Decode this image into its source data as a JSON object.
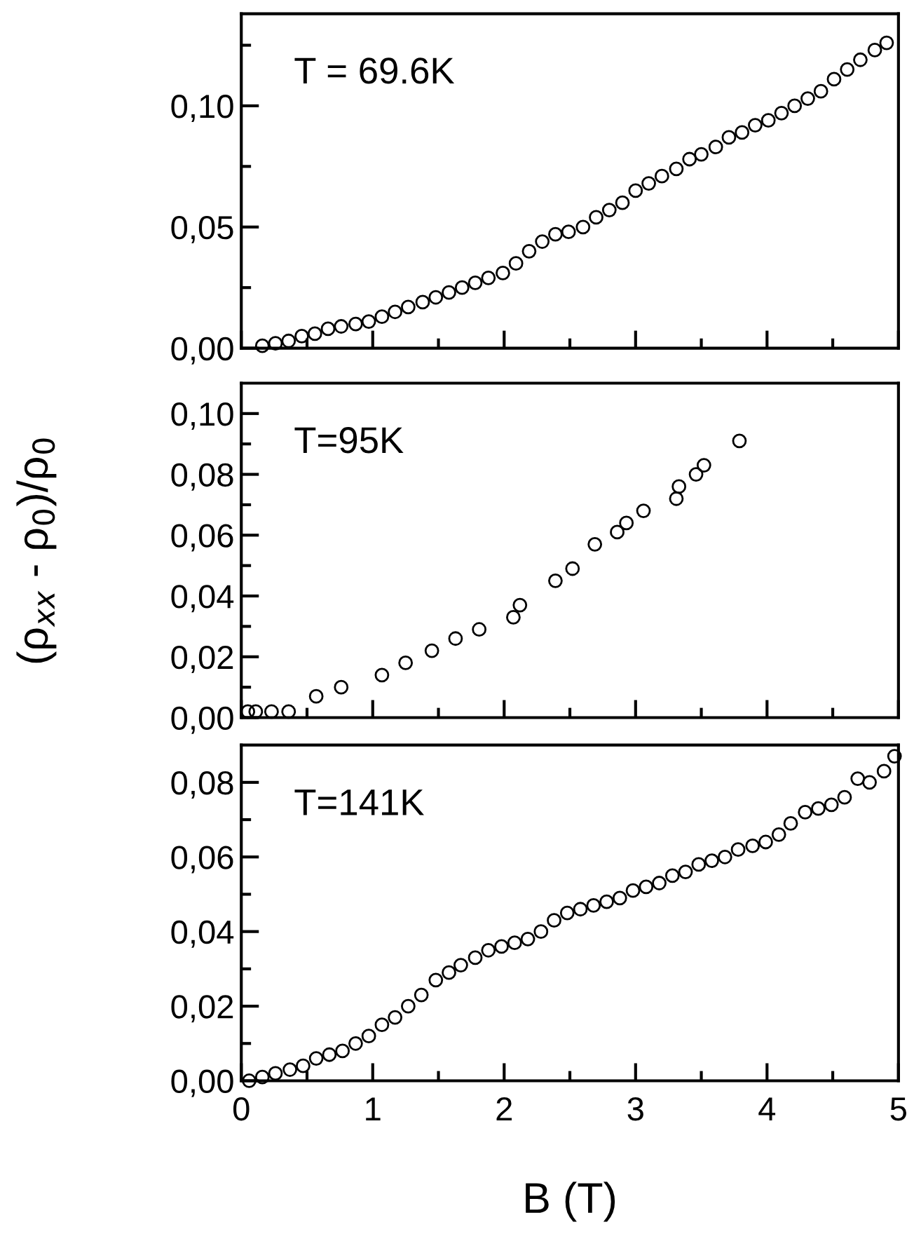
{
  "chart_data": [
    {
      "type": "scatter",
      "annotations": [
        "T = 69.6K"
      ],
      "marker": "circle",
      "grid": false,
      "tick_labels": "y",
      "xlim": [
        0,
        5
      ],
      "xticks": [
        0,
        {
          "value": 0.5,
          "label": null
        },
        1,
        {
          "value": 1.5,
          "label": null
        },
        2,
        {
          "value": 2.5,
          "label": null
        },
        3,
        {
          "value": 3.5,
          "label": null
        },
        4,
        {
          "value": 4.5,
          "label": null
        },
        5
      ],
      "ylim": [
        0,
        0.138
      ],
      "yticks": [
        {
          "value": 0,
          "label": "0,00"
        },
        {
          "value": 0.025,
          "label": null
        },
        {
          "value": 0.05,
          "label": "0,05"
        },
        {
          "value": 0.075,
          "label": null
        },
        {
          "value": 0.1,
          "label": "0,10"
        },
        {
          "value": 0.125,
          "label": null
        }
      ],
      "series": [
        {
          "color": "#000000",
          "x": [
            0.16,
            0.26,
            0.36,
            0.46,
            0.56,
            0.66,
            0.76,
            0.87,
            0.97,
            1.07,
            1.17,
            1.27,
            1.38,
            1.48,
            1.58,
            1.68,
            1.78,
            1.88,
            1.99,
            2.09,
            2.19,
            2.29,
            2.39,
            2.49,
            2.6,
            2.7,
            2.8,
            2.9,
            3.0,
            3.1,
            3.2,
            3.31,
            3.41,
            3.5,
            3.61,
            3.71,
            3.81,
            3.91,
            4.01,
            4.11,
            4.21,
            4.31,
            4.41,
            4.51,
            4.61,
            4.71,
            4.82,
            4.91
          ],
          "values": [
            0.001,
            0.002,
            0.003,
            0.005,
            0.006,
            0.008,
            0.009,
            0.01,
            0.011,
            0.013,
            0.015,
            0.017,
            0.019,
            0.021,
            0.023,
            0.025,
            0.027,
            0.029,
            0.031,
            0.035,
            0.04,
            0.044,
            0.047,
            0.048,
            0.05,
            0.054,
            0.057,
            0.06,
            0.065,
            0.068,
            0.071,
            0.074,
            0.078,
            0.08,
            0.083,
            0.087,
            0.089,
            0.092,
            0.094,
            0.097,
            0.1,
            0.103,
            0.106,
            0.111,
            0.115,
            0.119,
            0.123,
            0.126
          ]
        }
      ]
    },
    {
      "type": "scatter",
      "annotations": [
        "T=95K"
      ],
      "marker": "circle",
      "grid": false,
      "tick_labels": "y",
      "ylabel": "(ρ$_{xx}$ - ρ$_{0}$)/ρ$_{0}$",
      "xlim": [
        0,
        5
      ],
      "xticks": [
        0,
        {
          "value": 0.5,
          "label": null
        },
        1,
        {
          "value": 1.5,
          "label": null
        },
        2,
        {
          "value": 2.5,
          "label": null
        },
        3,
        {
          "value": 3.5,
          "label": null
        },
        4,
        {
          "value": 4.5,
          "label": null
        },
        5
      ],
      "ylim": [
        0,
        0.11
      ],
      "yticks": [
        {
          "value": 0,
          "label": "0,00"
        },
        {
          "value": 0.01,
          "label": null
        },
        {
          "value": 0.02,
          "label": "0,02"
        },
        {
          "value": 0.03,
          "label": null
        },
        {
          "value": 0.04,
          "label": "0,04"
        },
        {
          "value": 0.05,
          "label": null
        },
        {
          "value": 0.06,
          "label": "0,06"
        },
        {
          "value": 0.07,
          "label": null
        },
        {
          "value": 0.08,
          "label": "0,08"
        },
        {
          "value": 0.09,
          "label": null
        },
        {
          "value": 0.1,
          "label": "0,10"
        }
      ],
      "series": [
        {
          "color": "#000000",
          "x": [
            0.05,
            0.11,
            0.23,
            0.36,
            0.57,
            0.76,
            1.07,
            1.25,
            1.45,
            1.63,
            1.81,
            2.07,
            2.12,
            2.39,
            2.52,
            2.69,
            2.86,
            2.93,
            3.06,
            3.31,
            3.33,
            3.46,
            3.52,
            3.79
          ],
          "values": [
            0.002,
            0.002,
            0.002,
            0.002,
            0.007,
            0.01,
            0.014,
            0.018,
            0.022,
            0.026,
            0.029,
            0.033,
            0.037,
            0.045,
            0.049,
            0.057,
            0.061,
            0.064,
            0.068,
            0.072,
            0.076,
            0.08,
            0.083,
            0.091
          ]
        }
      ]
    },
    {
      "type": "scatter",
      "annotations": [
        "T=141K"
      ],
      "marker": "circle",
      "grid": false,
      "xlabel": "B (T)",
      "xlim": [
        0,
        5
      ],
      "xticks": [
        0,
        {
          "value": 0.5,
          "label": null
        },
        1,
        {
          "value": 1.5,
          "label": null
        },
        2,
        {
          "value": 2.5,
          "label": null
        },
        3,
        {
          "value": 3.5,
          "label": null
        },
        4,
        {
          "value": 4.5,
          "label": null
        },
        5
      ],
      "ylim": [
        0,
        0.09
      ],
      "yticks": [
        {
          "value": 0,
          "label": "0,00"
        },
        {
          "value": 0.01,
          "label": null
        },
        {
          "value": 0.02,
          "label": "0,02"
        },
        {
          "value": 0.03,
          "label": null
        },
        {
          "value": 0.04,
          "label": "0,04"
        },
        {
          "value": 0.05,
          "label": null
        },
        {
          "value": 0.06,
          "label": "0,06"
        },
        {
          "value": 0.07,
          "label": null
        },
        {
          "value": 0.08,
          "label": "0,08"
        }
      ],
      "series": [
        {
          "color": "#000000",
          "x": [
            0.06,
            0.16,
            0.26,
            0.37,
            0.47,
            0.57,
            0.67,
            0.77,
            0.87,
            0.97,
            1.07,
            1.17,
            1.27,
            1.37,
            1.48,
            1.58,
            1.67,
            1.78,
            1.88,
            1.98,
            2.08,
            2.18,
            2.28,
            2.38,
            2.48,
            2.58,
            2.68,
            2.78,
            2.88,
            2.98,
            3.08,
            3.18,
            3.28,
            3.38,
            3.48,
            3.58,
            3.68,
            3.78,
            3.89,
            3.99,
            4.09,
            4.18,
            4.29,
            4.39,
            4.49,
            4.59,
            4.69,
            4.78,
            4.89,
            4.97
          ],
          "values": [
            0.0,
            0.001,
            0.002,
            0.003,
            0.004,
            0.006,
            0.007,
            0.008,
            0.01,
            0.012,
            0.015,
            0.017,
            0.02,
            0.023,
            0.027,
            0.029,
            0.031,
            0.033,
            0.035,
            0.036,
            0.037,
            0.038,
            0.04,
            0.043,
            0.045,
            0.046,
            0.047,
            0.048,
            0.049,
            0.051,
            0.052,
            0.053,
            0.055,
            0.056,
            0.058,
            0.059,
            0.06,
            0.062,
            0.063,
            0.064,
            0.066,
            0.069,
            0.072,
            0.073,
            0.074,
            0.076,
            0.081,
            0.08,
            0.083,
            0.087
          ]
        }
      ]
    }
  ]
}
